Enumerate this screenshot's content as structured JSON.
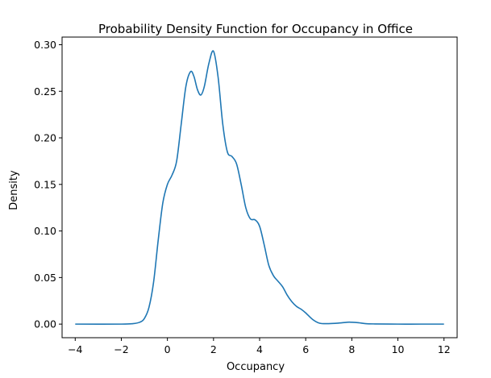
{
  "chart_data": {
    "type": "line",
    "title": "Probability Density Function for Occupancy in Office",
    "xlabel": "Occupancy",
    "ylabel": "Density",
    "xlim": [
      -4.57,
      12.57
    ],
    "ylim": [
      -0.0146,
      0.3082
    ],
    "xticks": [
      -4,
      -2,
      0,
      2,
      4,
      6,
      8,
      10,
      12
    ],
    "xtick_labels": [
      "−4",
      "−2",
      "0",
      "2",
      "4",
      "6",
      "8",
      "10",
      "12"
    ],
    "yticks": [
      0.0,
      0.05,
      0.1,
      0.15,
      0.2,
      0.25,
      0.3
    ],
    "ytick_labels": [
      "0.00",
      "0.05",
      "0.10",
      "0.15",
      "0.20",
      "0.25",
      "0.30"
    ],
    "grid": false,
    "legend": "none",
    "color": "#1f77b4",
    "series": [
      {
        "x": [
          -4.0,
          -2.0,
          -1.5,
          -1.2,
          -1.0,
          -0.8,
          -0.6,
          -0.4,
          -0.2,
          0.0,
          0.2,
          0.4,
          0.6,
          0.8,
          1.0,
          1.15,
          1.3,
          1.45,
          1.6,
          1.8,
          2.0,
          2.2,
          2.4,
          2.6,
          2.8,
          3.0,
          3.2,
          3.4,
          3.6,
          3.8,
          4.0,
          4.2,
          4.4,
          4.6,
          4.8,
          5.0,
          5.2,
          5.4,
          5.6,
          5.8,
          6.0,
          6.3,
          6.6,
          7.0,
          7.4,
          7.8,
          8.0,
          8.3,
          8.6,
          9.0,
          10.0,
          11.0,
          12.0
        ],
        "y": [
          0.0,
          0.0,
          0.0005,
          0.002,
          0.006,
          0.018,
          0.045,
          0.09,
          0.13,
          0.15,
          0.16,
          0.175,
          0.215,
          0.255,
          0.271,
          0.266,
          0.252,
          0.246,
          0.255,
          0.28,
          0.293,
          0.265,
          0.215,
          0.185,
          0.18,
          0.172,
          0.15,
          0.125,
          0.113,
          0.112,
          0.105,
          0.085,
          0.063,
          0.052,
          0.046,
          0.04,
          0.031,
          0.024,
          0.019,
          0.016,
          0.012,
          0.005,
          0.001,
          0.0005,
          0.001,
          0.002,
          0.002,
          0.0015,
          0.0005,
          0.0002,
          0.0,
          0.0,
          0.0
        ]
      }
    ]
  }
}
